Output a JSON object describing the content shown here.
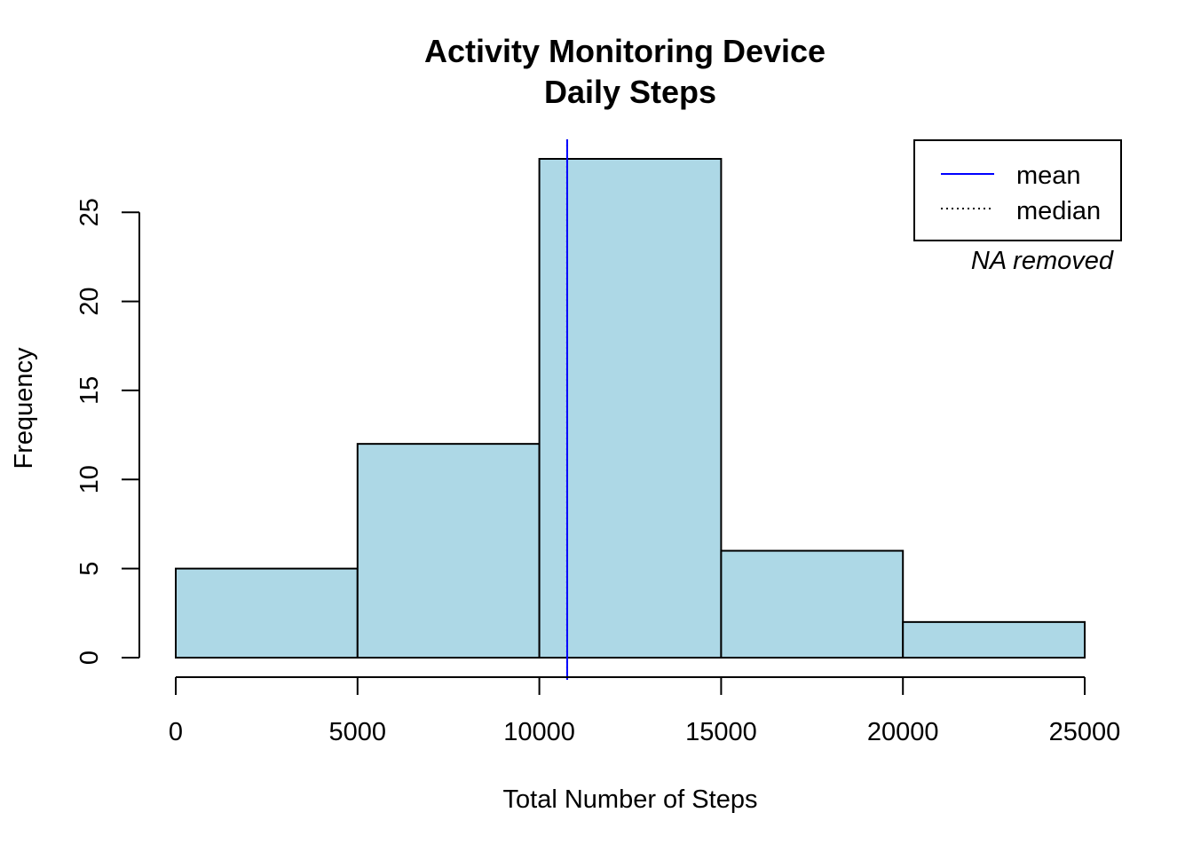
{
  "chart_data": {
    "type": "bar",
    "title": "Activity Monitoring Device",
    "subtitle": "Daily Steps",
    "xlabel": "Total Number of Steps",
    "ylabel": "Frequency",
    "bins": [
      {
        "from": 0,
        "to": 5000,
        "count": 5
      },
      {
        "from": 5000,
        "to": 10000,
        "count": 12
      },
      {
        "from": 10000,
        "to": 15000,
        "count": 28
      },
      {
        "from": 15000,
        "to": 20000,
        "count": 6
      },
      {
        "from": 20000,
        "to": 25000,
        "count": 2
      }
    ],
    "xlim": [
      0,
      25000
    ],
    "ylim": [
      0,
      28
    ],
    "x_ticks": [
      0,
      5000,
      10000,
      15000,
      20000,
      25000
    ],
    "y_ticks": [
      0,
      5,
      10,
      15,
      20,
      25
    ],
    "mean": 10766,
    "median": 10765,
    "bar_color": "#add8e6",
    "mean_color": "#0000ff",
    "median_color": "#000000",
    "grid": false,
    "legend_position": "top-right",
    "legend": [
      {
        "label": "mean",
        "style": "solid",
        "color": "#0000ff"
      },
      {
        "label": "median",
        "style": "dotted",
        "color": "#000000"
      }
    ],
    "annotation": "NA removed"
  }
}
